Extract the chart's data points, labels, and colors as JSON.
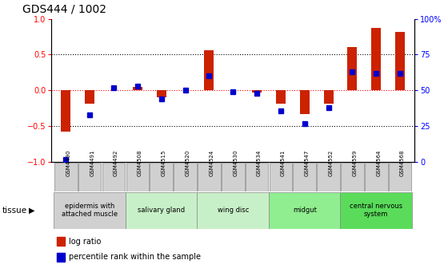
{
  "title": "GDS444 / 1002",
  "samples": [
    "GSM4490",
    "GSM4491",
    "GSM4492",
    "GSM4508",
    "GSM4515",
    "GSM4520",
    "GSM4524",
    "GSM4530",
    "GSM4534",
    "GSM4541",
    "GSM4547",
    "GSM4552",
    "GSM4559",
    "GSM4564",
    "GSM4568"
  ],
  "log_ratio": [
    -0.57,
    -0.19,
    0.0,
    0.05,
    -0.1,
    0.0,
    0.56,
    0.0,
    -0.03,
    -0.19,
    -0.33,
    -0.19,
    0.6,
    0.87,
    0.82
  ],
  "percentile_pct": [
    2,
    33,
    52,
    53,
    44,
    50,
    60,
    49,
    48,
    36,
    27,
    38,
    63,
    62,
    62
  ],
  "tissue_groups": [
    {
      "label": "epidermis with\nattached muscle",
      "start": 0,
      "end": 3,
      "color": "#d0d0d0"
    },
    {
      "label": "salivary gland",
      "start": 3,
      "end": 6,
      "color": "#c8f0c8"
    },
    {
      "label": "wing disc",
      "start": 6,
      "end": 9,
      "color": "#c8f0c8"
    },
    {
      "label": "midgut",
      "start": 9,
      "end": 12,
      "color": "#90ee90"
    },
    {
      "label": "central nervous\nsystem",
      "start": 12,
      "end": 15,
      "color": "#5adc5a"
    }
  ],
  "bar_color_red": "#cc2200",
  "bar_color_blue": "#0000cc",
  "ylim_left": [
    -1,
    1
  ],
  "ylim_right": [
    0,
    100
  ],
  "yticks_left": [
    -1,
    -0.5,
    0,
    0.5,
    1
  ],
  "yticks_right": [
    0,
    25,
    50,
    75,
    100
  ],
  "title_fontsize": 10,
  "tick_fontsize": 7,
  "sample_box_color": "#d0d0d0",
  "bar_width": 0.4
}
